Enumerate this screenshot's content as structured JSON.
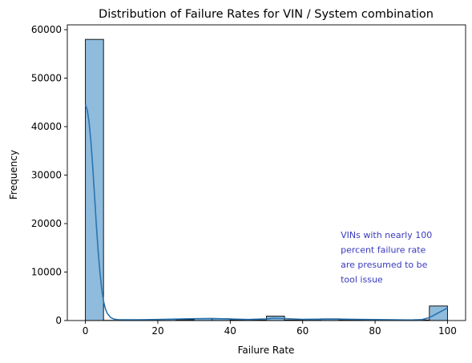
{
  "chart_data": {
    "type": "bar",
    "title": "Distribution of Failure Rates for VIN / System combination",
    "xlabel": "Failure Rate",
    "ylabel": "Frequency",
    "xlim": [
      -5,
      105
    ],
    "ylim": [
      0,
      61000
    ],
    "xticks": [
      0,
      20,
      40,
      60,
      80,
      100
    ],
    "yticks": [
      0,
      10000,
      20000,
      30000,
      40000,
      50000,
      60000
    ],
    "bin_width": 5,
    "bins": [
      {
        "x0": 0,
        "x1": 5,
        "count": 58000
      },
      {
        "x0": 5,
        "x1": 10,
        "count": 40
      },
      {
        "x0": 10,
        "x1": 15,
        "count": 60
      },
      {
        "x0": 15,
        "x1": 20,
        "count": 120
      },
      {
        "x0": 20,
        "x1": 25,
        "count": 240
      },
      {
        "x0": 25,
        "x1": 30,
        "count": 170
      },
      {
        "x0": 30,
        "x1": 35,
        "count": 420
      },
      {
        "x0": 35,
        "x1": 40,
        "count": 380
      },
      {
        "x0": 40,
        "x1": 45,
        "count": 160
      },
      {
        "x0": 45,
        "x1": 50,
        "count": 110
      },
      {
        "x0": 50,
        "x1": 55,
        "count": 900
      },
      {
        "x0": 55,
        "x1": 60,
        "count": 120
      },
      {
        "x0": 60,
        "x1": 65,
        "count": 190
      },
      {
        "x0": 65,
        "x1": 70,
        "count": 360
      },
      {
        "x0": 70,
        "x1": 75,
        "count": 170
      },
      {
        "x0": 75,
        "x1": 80,
        "count": 120
      },
      {
        "x0": 80,
        "x1": 85,
        "count": 140
      },
      {
        "x0": 85,
        "x1": 90,
        "count": 110
      },
      {
        "x0": 90,
        "x1": 95,
        "count": 120
      },
      {
        "x0": 95,
        "x1": 100,
        "count": 3000
      }
    ],
    "kde": {
      "x": [
        0,
        0.5,
        1,
        1.5,
        2,
        2.5,
        3,
        3.5,
        4,
        4.5,
        5,
        5.5,
        6,
        7,
        8,
        9,
        10,
        12,
        15,
        20,
        25,
        30,
        35,
        40,
        45,
        50,
        52,
        55,
        60,
        65,
        70,
        75,
        80,
        85,
        90,
        93,
        95,
        97,
        98.5,
        100
      ],
      "y": [
        44500,
        43500,
        41000,
        37000,
        32000,
        26000,
        20000,
        14500,
        10000,
        6500,
        4000,
        2500,
        1500,
        600,
        280,
        190,
        160,
        150,
        160,
        220,
        300,
        380,
        430,
        320,
        220,
        350,
        500,
        420,
        240,
        280,
        300,
        250,
        200,
        160,
        120,
        200,
        600,
        1400,
        2000,
        2600
      ]
    },
    "annotation": {
      "lines": [
        "VINs with nearly 100",
        "percent failure rate",
        "are presumed to be",
        "tool issue"
      ],
      "x": 70.5,
      "y": 17000
    },
    "colors": {
      "bar_fill": "#8fbbdc",
      "bar_edge": "#000000",
      "kde_line": "#2a74b0",
      "annotation": "#3a3abf"
    },
    "grid": false,
    "legend": "none"
  }
}
